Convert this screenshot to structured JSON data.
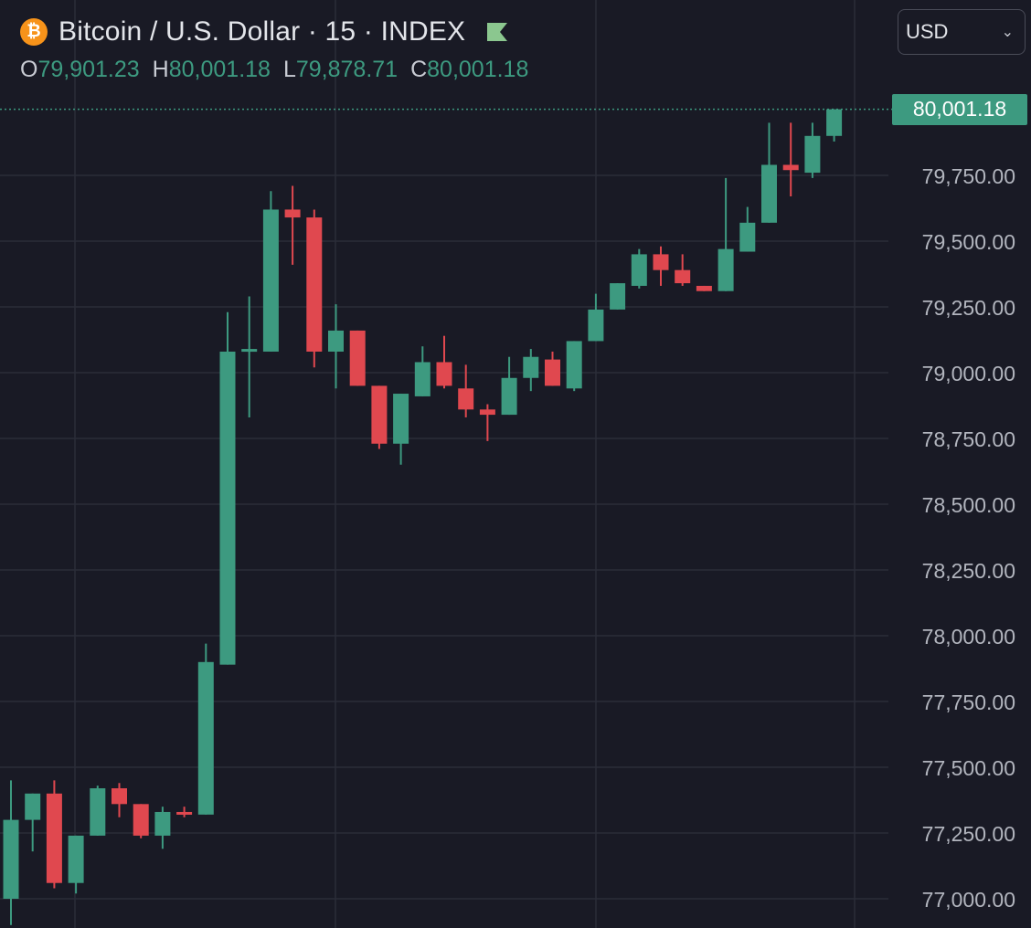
{
  "header": {
    "title": "Bitcoin / U.S. Dollar · 15 · INDEX",
    "coin_symbol": "₿",
    "icons": [
      "bitcoin-icon",
      "flag-icon"
    ]
  },
  "ohlc": {
    "o_label": "O",
    "o_value": "79,901.23",
    "h_label": "H",
    "h_value": "80,001.18",
    "l_label": "L",
    "l_value": "79,878.71",
    "c_label": "C",
    "c_value": "80,001.18"
  },
  "currency": {
    "selected": "USD"
  },
  "last_price_label": "80,001.18",
  "colors": {
    "background": "#191a25",
    "up": "#3d9a80",
    "down": "#e0484f",
    "grid": "#2a2c38",
    "axis_text": "#b2b5be",
    "price_line": "#3d9a80",
    "bitcoin": "#f7931a"
  },
  "chart_data": {
    "type": "candlestick",
    "y_ticks": [
      "80,001.18",
      "79,750.00",
      "79,500.00",
      "79,250.00",
      "79,000.00",
      "78,750.00",
      "78,500.00",
      "78,250.00",
      "78,000.00",
      "77,750.00",
      "77,500.00",
      "77,250.00",
      "77,000.00"
    ],
    "y_tick_values": [
      79750,
      79500,
      79250,
      79000,
      78750,
      78500,
      78250,
      78000,
      77750,
      77500,
      77250,
      77000
    ],
    "ylim": [
      76900,
      80100
    ],
    "last_price": 80001.18,
    "grid": true,
    "candles": [
      {
        "o": 77000,
        "h": 77450,
        "l": 76900,
        "c": 77300
      },
      {
        "o": 77300,
        "h": 77400,
        "l": 77180,
        "c": 77400
      },
      {
        "o": 77400,
        "h": 77450,
        "l": 77040,
        "c": 77060
      },
      {
        "o": 77060,
        "h": 77240,
        "l": 77020,
        "c": 77240
      },
      {
        "o": 77240,
        "h": 77430,
        "l": 77240,
        "c": 77420
      },
      {
        "o": 77420,
        "h": 77440,
        "l": 77310,
        "c": 77360
      },
      {
        "o": 77360,
        "h": 77360,
        "l": 77230,
        "c": 77240
      },
      {
        "o": 77240,
        "h": 77350,
        "l": 77190,
        "c": 77330
      },
      {
        "o": 77330,
        "h": 77350,
        "l": 77310,
        "c": 77320
      },
      {
        "o": 77320,
        "h": 77970,
        "l": 77320,
        "c": 77900
      },
      {
        "o": 77890,
        "h": 79230,
        "l": 77890,
        "c": 79080
      },
      {
        "o": 79090,
        "h": 79290,
        "l": 78830,
        "c": 79090
      },
      {
        "o": 79080,
        "h": 79690,
        "l": 79080,
        "c": 79620
      },
      {
        "o": 79620,
        "h": 79710,
        "l": 79410,
        "c": 79590
      },
      {
        "o": 79590,
        "h": 79620,
        "l": 79020,
        "c": 79080
      },
      {
        "o": 79080,
        "h": 79260,
        "l": 78940,
        "c": 79160
      },
      {
        "o": 79160,
        "h": 79160,
        "l": 78950,
        "c": 78950
      },
      {
        "o": 78950,
        "h": 78950,
        "l": 78710,
        "c": 78730
      },
      {
        "o": 78730,
        "h": 78920,
        "l": 78650,
        "c": 78920
      },
      {
        "o": 78910,
        "h": 79100,
        "l": 78910,
        "c": 79040
      },
      {
        "o": 79040,
        "h": 79140,
        "l": 78940,
        "c": 78950
      },
      {
        "o": 78940,
        "h": 79030,
        "l": 78830,
        "c": 78860
      },
      {
        "o": 78860,
        "h": 78880,
        "l": 78740,
        "c": 78840
      },
      {
        "o": 78840,
        "h": 79060,
        "l": 78840,
        "c": 78980
      },
      {
        "o": 78980,
        "h": 79090,
        "l": 78930,
        "c": 79060
      },
      {
        "o": 79050,
        "h": 79080,
        "l": 78950,
        "c": 78950
      },
      {
        "o": 78940,
        "h": 79120,
        "l": 78930,
        "c": 79120
      },
      {
        "o": 79120,
        "h": 79300,
        "l": 79120,
        "c": 79240
      },
      {
        "o": 79240,
        "h": 79340,
        "l": 79240,
        "c": 79340
      },
      {
        "o": 79330,
        "h": 79470,
        "l": 79320,
        "c": 79450
      },
      {
        "o": 79450,
        "h": 79480,
        "l": 79330,
        "c": 79390
      },
      {
        "o": 79390,
        "h": 79450,
        "l": 79330,
        "c": 79340
      },
      {
        "o": 79330,
        "h": 79330,
        "l": 79310,
        "c": 79310
      },
      {
        "o": 79310,
        "h": 79740,
        "l": 79310,
        "c": 79470
      },
      {
        "o": 79460,
        "h": 79630,
        "l": 79460,
        "c": 79570
      },
      {
        "o": 79570,
        "h": 79950,
        "l": 79570,
        "c": 79790
      },
      {
        "o": 79790,
        "h": 79950,
        "l": 79670,
        "c": 79770
      },
      {
        "o": 79760,
        "h": 79950,
        "l": 79740,
        "c": 79900
      },
      {
        "o": 79900,
        "h": 80001.18,
        "l": 79878.71,
        "c": 80001.18
      }
    ]
  }
}
